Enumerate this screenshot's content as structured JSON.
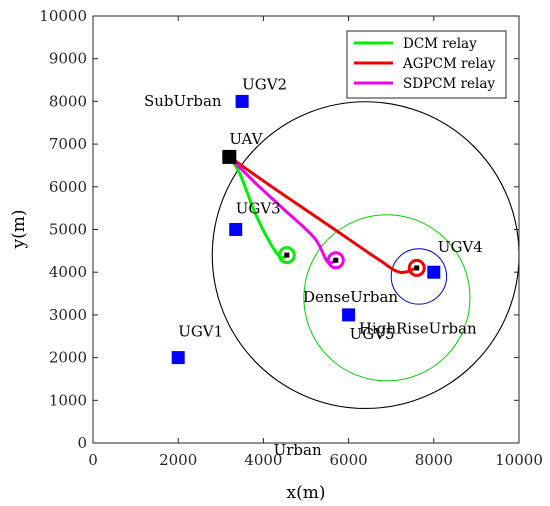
{
  "chart_data": {
    "type": "scatter",
    "title": "",
    "xlabel": "x(m)",
    "ylabel": "y(m)",
    "xlim": [
      0,
      10000
    ],
    "ylim": [
      0,
      10000
    ],
    "xticks": [
      0,
      2000,
      4000,
      6000,
      8000,
      10000
    ],
    "yticks": [
      0,
      1000,
      2000,
      3000,
      4000,
      5000,
      6000,
      7000,
      8000,
      9000,
      10000
    ],
    "grid": false,
    "legend_position": "top-right",
    "nodes": [
      {
        "label": "UGV1",
        "x": 2000,
        "y": 2000,
        "kind": "ugv",
        "color": "#0000ff"
      },
      {
        "label": "UGV2",
        "x": 3500,
        "y": 8000,
        "kind": "ugv",
        "color": "#0000ff"
      },
      {
        "label": "UGV3",
        "x": 3350,
        "y": 5000,
        "kind": "ugv",
        "color": "#0000ff"
      },
      {
        "label": "UGV4",
        "x": 8000,
        "y": 4000,
        "kind": "ugv",
        "color": "#0000ff"
      },
      {
        "label": "UGV5",
        "x": 6000,
        "y": 3000,
        "kind": "ugv",
        "color": "#0000ff"
      },
      {
        "label": "UAV",
        "x": 3200,
        "y": 6700,
        "kind": "uav",
        "color": "#000000"
      }
    ],
    "regions": [
      {
        "label": "Urban",
        "cx": 6400,
        "cy": 4400,
        "r": 3600,
        "color": "#000000"
      },
      {
        "label": "DenseUrban",
        "cx": 6900,
        "cy": 3400,
        "r": 1950,
        "color": "#00cc00"
      },
      {
        "label": "HighRiseUrban",
        "cx": 7650,
        "cy": 3900,
        "r": 650,
        "color": "#0000cc"
      },
      {
        "label": "SubUrban"
      }
    ],
    "series": [
      {
        "name": "DCM relay",
        "color": "#00ee00",
        "x": [
          3200,
          3450,
          3800,
          4150,
          4400,
          4550
        ],
        "y": [
          6700,
          6300,
          5400,
          4700,
          4350,
          4400
        ],
        "end": {
          "x": 4550,
          "y": 4400
        }
      },
      {
        "name": "AGPCM relay",
        "color": "#ee0000",
        "x": [
          3200,
          4200,
          5600,
          6700,
          7200,
          7600
        ],
        "y": [
          6700,
          6000,
          5050,
          4300,
          4000,
          4100
        ],
        "end": {
          "x": 7600,
          "y": 4100
        }
      },
      {
        "name": "SDPCM relay",
        "color": "#ee00ee",
        "x": [
          3200,
          3800,
          4450,
          5200,
          5500,
          5700
        ],
        "y": [
          6700,
          6100,
          5500,
          4800,
          4250,
          4280
        ],
        "end": {
          "x": 5700,
          "y": 4280
        }
      }
    ]
  }
}
